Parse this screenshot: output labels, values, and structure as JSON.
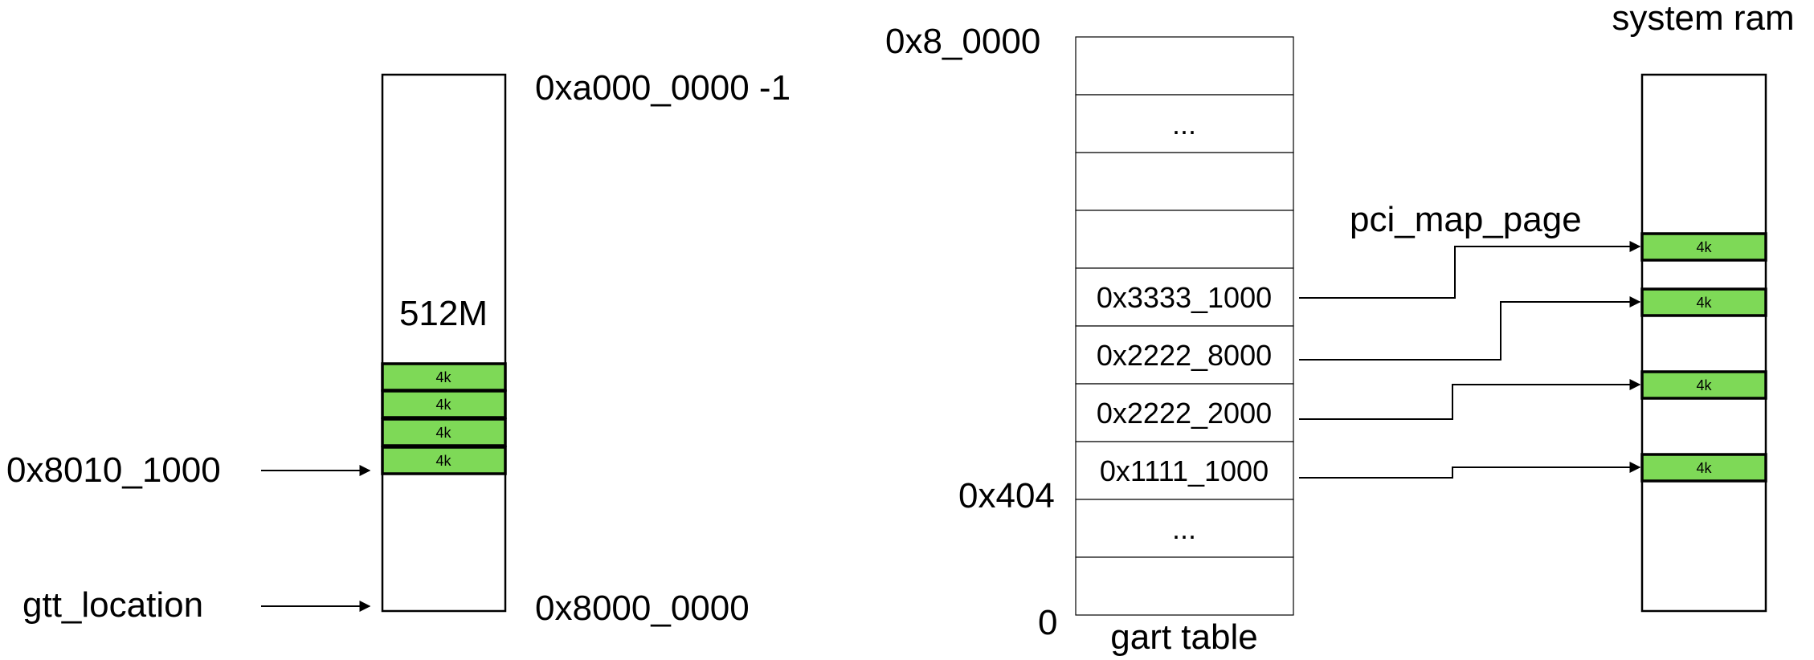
{
  "gtt": {
    "top_addr": "0xa000_0000 -1",
    "bottom_addr": "0x8000_0000",
    "size_label": "512M",
    "page_label": "4k",
    "page_count": 4,
    "pointer_addr": "0x8010_1000",
    "location_label": "gtt_location"
  },
  "gart": {
    "caption": "gart table",
    "top_offset": "0x8_0000",
    "mid_offset": "0x404",
    "zero_offset": "0",
    "rows": [
      "",
      "...",
      "",
      "",
      "0x3333_1000",
      "0x2222_8000",
      "0x2222_2000",
      "0x1111_1000",
      "...",
      ""
    ]
  },
  "system_ram": {
    "title": "system ram",
    "page_label": "4k",
    "page_count": 4
  },
  "mapping": {
    "label": "pci_map_page"
  },
  "colors": {
    "page_fill": "#7ed957",
    "stroke": "#000000",
    "background": "#ffffff"
  }
}
